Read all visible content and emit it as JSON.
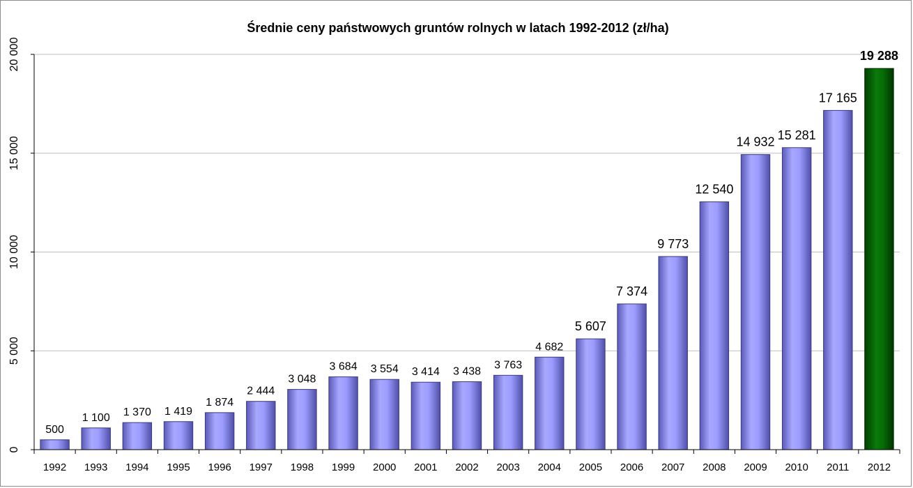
{
  "chart_data": {
    "type": "bar",
    "title": "Średnie ceny państwowych gruntów rolnych w latach 1992-2012 (zł/ha)",
    "xlabel": "",
    "ylabel": "",
    "ylim": [
      0,
      20000
    ],
    "y_ticks": [
      0,
      5000,
      10000,
      15000,
      20000
    ],
    "y_tick_labels": [
      "0",
      "5 000",
      "10 000",
      "15 000",
      "20 000"
    ],
    "grid": true,
    "legend": "none",
    "categories": [
      "1992",
      "1993",
      "1994",
      "1995",
      "1996",
      "1997",
      "1998",
      "1999",
      "2000",
      "2001",
      "2002",
      "2003",
      "2004",
      "2005",
      "2006",
      "2007",
      "2008",
      "2009",
      "2010",
      "2011",
      "2012"
    ],
    "values": [
      500,
      1100,
      1370,
      1419,
      1874,
      2444,
      3048,
      3684,
      3554,
      3414,
      3438,
      3763,
      4682,
      5607,
      7374,
      9773,
      12540,
      14932,
      15281,
      17165,
      19288
    ],
    "data_labels": [
      "500",
      "1 100",
      "1 370",
      "1 419",
      "1 874",
      "2 444",
      "3 048",
      "3 684",
      "3 554",
      "3 414",
      "3 438",
      "3 763",
      "4 682",
      "5 607",
      "7 374",
      "9 773",
      "12 540",
      "14 932",
      "15 281",
      "17 165",
      "19 288"
    ],
    "colors": {
      "bar": "#9999ff",
      "highlight_bar": "#006600",
      "gridline": "#bfbfbf",
      "axis": "#000000"
    },
    "highlight_index": 20
  }
}
